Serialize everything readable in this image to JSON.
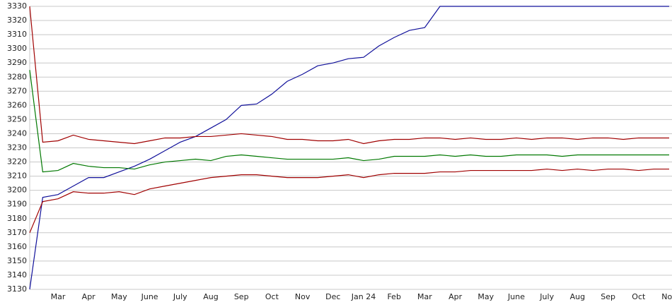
{
  "chart_data": {
    "type": "line",
    "categories": [
      null,
      null,
      "Mar",
      null,
      "Apr",
      null,
      "May",
      null,
      "June",
      null,
      "July",
      null,
      "Aug",
      null,
      "Sep",
      null,
      "Oct",
      null,
      "Nov",
      null,
      "Dec",
      null,
      "Jan 24",
      null,
      "Feb",
      null,
      "Mar",
      null,
      "Apr",
      null,
      "May",
      null,
      "June",
      null,
      "July",
      null,
      "Aug",
      null,
      "Sep",
      null,
      "Oct",
      null,
      "Nov"
    ],
    "series": [
      {
        "color": "#10109a",
        "values": [
          3130,
          3195,
          3197,
          3203,
          3209,
          3209,
          3213,
          3217,
          3222,
          3228,
          3234,
          3238,
          3244,
          3250,
          3260,
          3261,
          3268,
          3277,
          3282,
          3288,
          3290,
          3293,
          3294,
          3302,
          3308,
          3313,
          3315,
          3330,
          3330,
          3330,
          3330,
          3330,
          3330,
          3330,
          3330,
          3330,
          3330,
          3330,
          3330,
          3330,
          3330,
          3330,
          3330
        ]
      },
      {
        "color": "#a00000",
        "values": [
          3330,
          3234,
          3235,
          3239,
          3236,
          3235,
          3234,
          3233,
          3235,
          3237,
          3237,
          3238,
          3238,
          3239,
          3240,
          3239,
          3238,
          3236,
          3236,
          3235,
          3235,
          3236,
          3233,
          3235,
          3236,
          3236,
          3237,
          3237,
          3236,
          3237,
          3236,
          3236,
          3237,
          3236,
          3237,
          3237,
          3236,
          3237,
          3237,
          3236,
          3237,
          3237,
          3237
        ]
      },
      {
        "color": "#007800",
        "values": [
          3285,
          3213,
          3214,
          3219,
          3217,
          3216,
          3216,
          3215,
          3218,
          3220,
          3221,
          3222,
          3221,
          3224,
          3225,
          3224,
          3223,
          3222,
          3222,
          3222,
          3222,
          3223,
          3221,
          3222,
          3224,
          3224,
          3224,
          3225,
          3224,
          3225,
          3224,
          3224,
          3225,
          3225,
          3225,
          3224,
          3225,
          3225,
          3225,
          3225,
          3225,
          3225,
          3225
        ]
      },
      {
        "color": "#a00000",
        "values": [
          3170,
          3192,
          3194,
          3199,
          3198,
          3198,
          3199,
          3197,
          3201,
          3203,
          3205,
          3207,
          3209,
          3210,
          3211,
          3211,
          3210,
          3209,
          3209,
          3209,
          3210,
          3211,
          3209,
          3211,
          3212,
          3212,
          3212,
          3213,
          3213,
          3214,
          3214,
          3214,
          3214,
          3214,
          3215,
          3214,
          3215,
          3214,
          3215,
          3215,
          3214,
          3215,
          3215
        ]
      }
    ],
    "ylim": [
      3130,
      3330
    ],
    "yticks": [
      3130,
      3140,
      3150,
      3160,
      3170,
      3180,
      3190,
      3200,
      3210,
      3220,
      3230,
      3240,
      3250,
      3260,
      3270,
      3280,
      3290,
      3300,
      3310,
      3320,
      3330
    ],
    "grid": true
  }
}
